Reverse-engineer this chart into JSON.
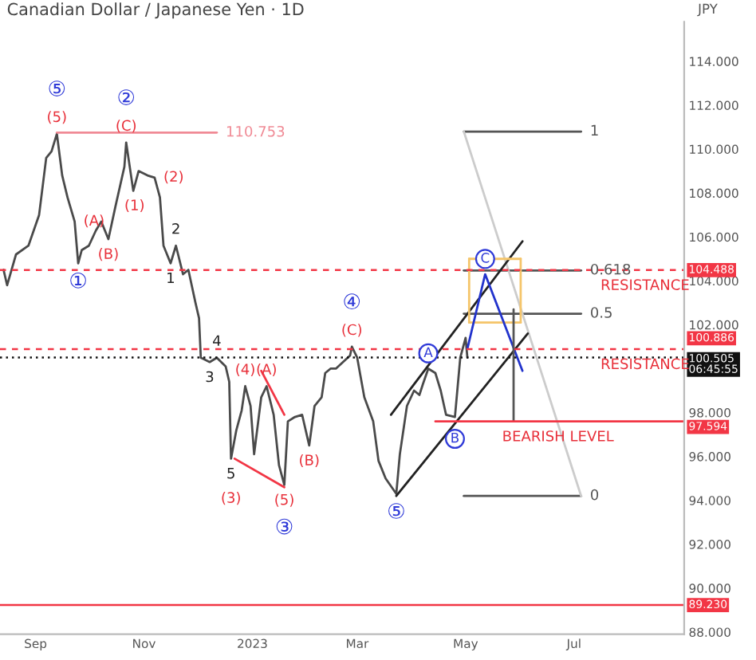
{
  "chart_data": {
    "type": "line",
    "title": "Canadian Dollar / Japanese Yen · 1D",
    "ylabel": "JPY",
    "xlim": [
      "2022-08-12",
      "2023-09-01"
    ],
    "ylim": [
      87.9,
      115.8
    ],
    "xticks": [
      {
        "value": "2022-09-01",
        "label": "Sep"
      },
      {
        "value": "2022-11-01",
        "label": "Nov"
      },
      {
        "value": "2023-01-01",
        "label": "2023"
      },
      {
        "value": "2023-03-01",
        "label": "Mar"
      },
      {
        "value": "2023-05-01",
        "label": "May"
      },
      {
        "value": "2023-07-01",
        "label": "Jul"
      }
    ],
    "yticks": [
      {
        "value": 88,
        "label": "88.000"
      },
      {
        "value": 90,
        "label": "90.000"
      },
      {
        "value": 92,
        "label": "92.000"
      },
      {
        "value": 94,
        "label": "94.000"
      },
      {
        "value": 96,
        "label": "96.000"
      },
      {
        "value": 98,
        "label": "98.000"
      },
      {
        "value": 102,
        "label": "102.000"
      },
      {
        "value": 104,
        "label": "104.000"
      },
      {
        "value": 106,
        "label": "106.000"
      },
      {
        "value": 108,
        "label": "108.000"
      },
      {
        "value": 110,
        "label": "110.000"
      },
      {
        "value": 112,
        "label": "112.000"
      },
      {
        "value": 114,
        "label": "114.000"
      }
    ],
    "grid": false,
    "legend": false,
    "series": [
      {
        "color": "#4a4a4a",
        "x": [
          "2022-08-14",
          "2022-08-16",
          "2022-08-21",
          "2022-08-28",
          "2022-09-03",
          "2022-09-07",
          "2022-09-10",
          "2022-09-13",
          "2022-09-16",
          "2022-09-19",
          "2022-09-23",
          "2022-09-25",
          "2022-09-27",
          "2022-10-01",
          "2022-10-05",
          "2022-10-08",
          "2022-10-12",
          "2022-10-16",
          "2022-10-21",
          "2022-10-22",
          "2022-10-26",
          "2022-10-29",
          "2022-11-03",
          "2022-11-07",
          "2022-11-10",
          "2022-11-12",
          "2022-11-16",
          "2022-11-19",
          "2022-11-23",
          "2022-11-26",
          "2022-11-30",
          "2022-12-02",
          "2022-12-03",
          "2022-12-08",
          "2022-12-12",
          "2022-12-17",
          "2022-12-19",
          "2022-12-20",
          "2022-12-23",
          "2022-12-26",
          "2022-12-28",
          "2022-12-31",
          "2023-01-02",
          "2023-01-06",
          "2023-01-09",
          "2023-01-13",
          "2023-01-16",
          "2023-01-19",
          "2023-01-21",
          "2023-01-25",
          "2023-01-29",
          "2023-02-02",
          "2023-02-05",
          "2023-02-09",
          "2023-02-11",
          "2023-02-14",
          "2023-02-17",
          "2023-02-21",
          "2023-02-25",
          "2023-02-26",
          "2023-03-01",
          "2023-03-05",
          "2023-03-10",
          "2023-03-13",
          "2023-03-17",
          "2023-03-23",
          "2023-03-25",
          "2023-03-29",
          "2023-04-02",
          "2023-04-05",
          "2023-04-07",
          "2023-04-10",
          "2023-04-14",
          "2023-04-17",
          "2023-04-20",
          "2023-04-25",
          "2023-04-28",
          "2023-05-01",
          "2023-05-02"
        ],
        "values": [
          104.5,
          103.8,
          105.2,
          105.6,
          107.0,
          109.6,
          109.9,
          110.7,
          108.8,
          107.8,
          106.7,
          104.8,
          105.4,
          105.6,
          106.3,
          106.7,
          105.9,
          107.4,
          109.2,
          110.3,
          108.1,
          109.0,
          108.8,
          108.7,
          107.8,
          105.6,
          104.8,
          105.6,
          104.3,
          104.5,
          103.0,
          102.3,
          100.5,
          100.3,
          100.5,
          100.1,
          99.4,
          95.9,
          97.2,
          98.1,
          99.2,
          98.3,
          96.1,
          98.7,
          99.2,
          97.9,
          95.6,
          94.7,
          97.6,
          97.8,
          97.9,
          96.5,
          98.3,
          98.7,
          99.8,
          100.0,
          100.0,
          100.3,
          100.6,
          101.0,
          100.5,
          98.7,
          97.6,
          95.8,
          95.0,
          94.3,
          96.1,
          98.3,
          99.0,
          98.8,
          99.3,
          100.0,
          99.8,
          99.0,
          97.9,
          97.8,
          100.5,
          101.4,
          100.5
        ]
      },
      {
        "type": "line",
        "color": "#f08a95",
        "x": [
          "2022-09-13",
          "2022-12-12"
        ],
        "values": [
          110.753,
          110.753
        ]
      },
      {
        "type": "line",
        "color": "#555555",
        "x": [
          "2023-04-30",
          "2023-07-05"
        ],
        "values": [
          110.8,
          110.8
        ]
      },
      {
        "type": "line",
        "color": "#555555",
        "x": [
          "2023-04-30",
          "2023-07-05"
        ],
        "values": [
          104.47,
          104.47
        ]
      },
      {
        "type": "line",
        "color": "#555555",
        "x": [
          "2023-04-30",
          "2023-07-05"
        ],
        "values": [
          102.5,
          102.5
        ]
      },
      {
        "type": "line",
        "color": "#555555",
        "x": [
          "2023-04-30",
          "2023-07-05"
        ],
        "values": [
          94.2,
          94.2
        ]
      },
      {
        "type": "line",
        "color": "#cccccc",
        "x": [
          "2023-04-30",
          "2023-07-05"
        ],
        "values": [
          110.8,
          94.2
        ]
      },
      {
        "type": "line",
        "color": "#222222",
        "x": [
          "2023-03-20",
          "2023-06-02"
        ],
        "values": [
          97.9,
          105.8
        ]
      },
      {
        "type": "line",
        "color": "#222222",
        "x": [
          "2023-03-23",
          "2023-06-05"
        ],
        "values": [
          94.2,
          101.6
        ]
      },
      {
        "type": "line",
        "color": "#f5c56a",
        "x": [
          "2023-05-03",
          "2023-06-01"
        ],
        "values": [
          105.0,
          105.0
        ]
      },
      {
        "type": "line",
        "color": "#f5c56a",
        "x": [
          "2023-05-03",
          "2023-06-01"
        ],
        "values": [
          102.1,
          102.1
        ]
      },
      {
        "type": "line",
        "color": "#f5c56a",
        "x": [
          "2023-05-03",
          "2023-05-03"
        ],
        "values": [
          102.1,
          105.0
        ]
      },
      {
        "type": "line",
        "color": "#f5c56a",
        "x": [
          "2023-06-01",
          "2023-06-01"
        ],
        "values": [
          102.1,
          105.0
        ]
      },
      {
        "type": "line",
        "color": "#2233cc",
        "x": [
          "2023-05-02",
          "2023-05-12",
          "2023-06-02"
        ],
        "values": [
          100.9,
          104.3,
          99.9
        ]
      },
      {
        "type": "line",
        "color": "#555555",
        "x": [
          "2023-05-28",
          "2023-05-28"
        ],
        "values": [
          97.6,
          102.7
        ]
      },
      {
        "type": "line",
        "color": "#f23645",
        "x": [
          "2023-01-06",
          "2023-01-19"
        ],
        "values": [
          99.9,
          97.9
        ]
      },
      {
        "type": "line",
        "color": "#f23645",
        "x": [
          "2022-12-22",
          "2023-01-19"
        ],
        "values": [
          95.9,
          94.6
        ]
      },
      {
        "type": "line",
        "color": "#f23645",
        "x": [
          "2023-04-14",
          "2023-09-01"
        ],
        "values": [
          97.594,
          97.594
        ]
      }
    ],
    "ref_lines": [
      {
        "axis": "y",
        "value": 104.488,
        "label": "104.488",
        "color": "#f23645",
        "line_style": "dashed"
      },
      {
        "axis": "y",
        "value": 100.886,
        "label": "100.886",
        "color": "#f23645",
        "line_style": "dashed"
      },
      {
        "axis": "y",
        "value": 100.505,
        "label": "100.505\n06:45:55",
        "color": "#111111",
        "line_style": "dotted"
      },
      {
        "axis": "y",
        "value": 89.23,
        "label": "89.230",
        "color": "#f23645",
        "line_style": "solid"
      }
    ],
    "annotations": [
      {
        "text": "(5)",
        "x": "2022-09-13",
        "y": 110.7
      },
      {
        "text": "⑤",
        "x": "2022-09-13",
        "y": 110.7
      },
      {
        "text": "①",
        "x": "2022-09-25",
        "y": 104.8
      },
      {
        "text": "(A)",
        "x": "2022-09-23",
        "y": 106.7
      },
      {
        "text": "(B)",
        "x": "2022-10-12",
        "y": 105.9
      },
      {
        "text": "(1)",
        "x": "2022-10-16",
        "y": 107.4
      },
      {
        "text": "(C)",
        "x": "2022-10-22",
        "y": 110.3
      },
      {
        "text": "②",
        "x": "2022-10-22",
        "y": 110.3
      },
      {
        "text": "(2)",
        "x": "2022-11-07",
        "y": 108.7
      },
      {
        "text": "2",
        "x": "2022-11-19",
        "y": 105.6
      },
      {
        "text": "1",
        "x": "2022-11-16",
        "y": 104.8
      },
      {
        "text": "4",
        "x": "2022-12-12",
        "y": 100.5
      },
      {
        "text": "3",
        "x": "2022-12-08",
        "y": 100.3
      },
      {
        "text": "5",
        "x": "2022-12-20",
        "y": 95.9
      },
      {
        "text": "(3)",
        "x": "2022-12-20",
        "y": 95.9
      },
      {
        "text": "(4)",
        "x": "2022-12-28",
        "y": 99.2
      },
      {
        "text": "(A)",
        "x": "2023-01-09",
        "y": 99.2
      },
      {
        "text": "(5)",
        "x": "2023-01-19",
        "y": 94.7
      },
      {
        "text": "③",
        "x": "2023-01-19",
        "y": 94.7
      },
      {
        "text": "(B)",
        "x": "2023-02-02",
        "y": 96.5
      },
      {
        "text": "(C)",
        "x": "2023-02-26",
        "y": 101.0
      },
      {
        "text": "④",
        "x": "2023-02-26",
        "y": 101.0
      },
      {
        "text": "⑤",
        "x": "2023-03-23",
        "y": 94.3
      },
      {
        "text": "A",
        "x": "2023-04-10",
        "y": 100.0
      },
      {
        "text": "B",
        "x": "2023-04-25",
        "y": 97.8
      },
      {
        "text": "C",
        "x": "2023-05-12",
        "y": 104.3
      },
      {
        "text": "110.753",
        "x": "2022-12-12",
        "y": 110.753
      },
      {
        "text": "1",
        "x": "2023-07-05",
        "y": 110.8
      },
      {
        "text": "0.618",
        "x": "2023-07-05",
        "y": 104.47
      },
      {
        "text": "0.5",
        "x": "2023-07-05",
        "y": 102.5
      },
      {
        "text": "0",
        "x": "2023-07-05",
        "y": 94.2
      },
      {
        "text": "97.594",
        "x": "2023-09-01",
        "y": 97.594
      },
      {
        "text": "RESISTANCE",
        "x": "2023-08-10",
        "y": 104.488
      },
      {
        "text": "RESISTANCE",
        "x": "2023-08-10",
        "y": 100.886
      },
      {
        "text": "BEARISH LEVEL",
        "x": "2023-06-22",
        "y": 97.594
      }
    ]
  }
}
